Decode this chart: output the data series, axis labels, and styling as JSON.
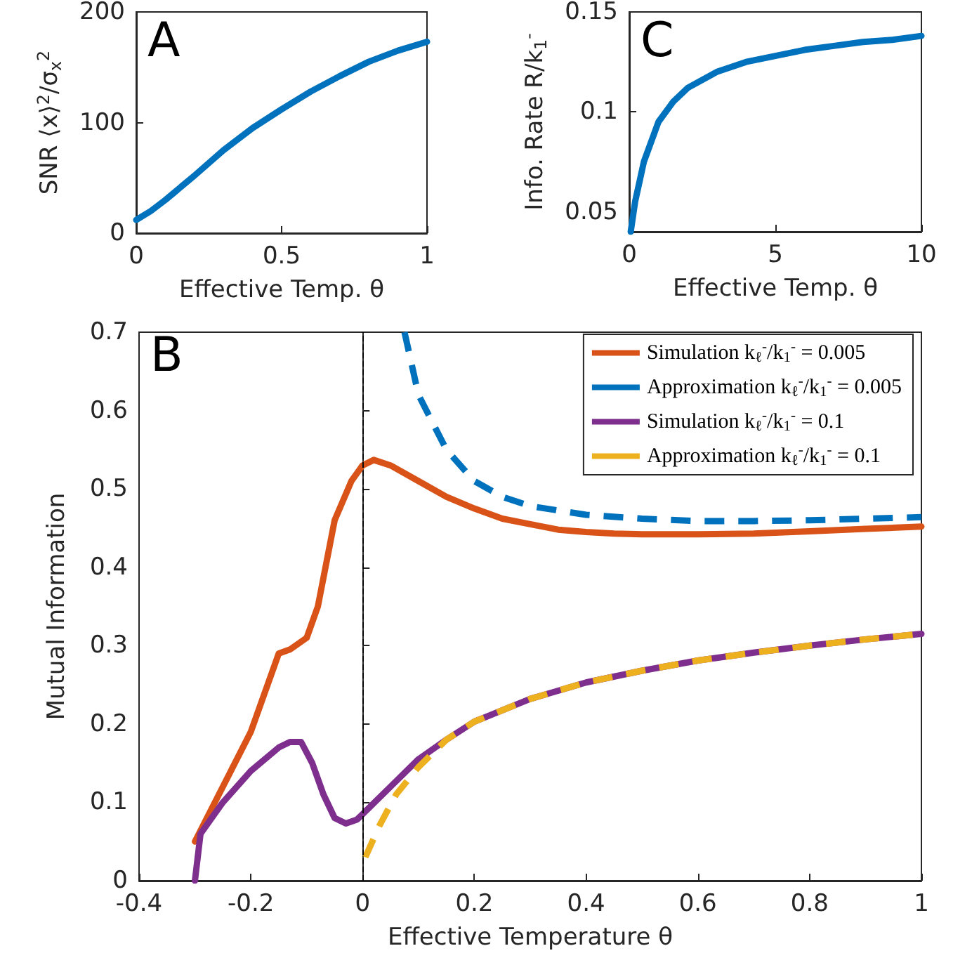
{
  "chart_data": [
    {
      "type": "line",
      "annotations": [
        "A"
      ],
      "xlabel": "Effective Temp. θ",
      "ylabel": "SNR ⟨x⟩$^{2}$/σ$_{x}$$^{2}$",
      "xlim": [
        0,
        1
      ],
      "xticks": [
        0,
        0.5,
        1
      ],
      "ylim": [
        0,
        200
      ],
      "yticks": [
        0,
        100,
        200
      ],
      "grid": false,
      "marker": "none",
      "series": [
        {
          "color": "#0072bd",
          "x": [
            0,
            0.05,
            0.1,
            0.2,
            0.3,
            0.4,
            0.5,
            0.6,
            0.7,
            0.8,
            0.9,
            1
          ],
          "values": [
            12,
            20,
            30,
            52,
            75,
            95,
            112,
            128,
            142,
            155,
            165,
            173
          ]
        }
      ]
    },
    {
      "type": "line",
      "annotations": [
        "C"
      ],
      "xlabel": "Effective Temp. θ",
      "ylabel": "Info. Rate R/k$_{1}$$^{-}$",
      "xlim": [
        0,
        10
      ],
      "xticks": [
        0,
        5,
        10
      ],
      "ylim": [
        0.04,
        0.15
      ],
      "yticks": [
        0.05,
        0.1,
        0.15
      ],
      "grid": false,
      "marker": "none",
      "series": [
        {
          "color": "#0072bd",
          "x": [
            0.05,
            0.2,
            0.5,
            1,
            1.5,
            2,
            3,
            4,
            5,
            6,
            7,
            8,
            9,
            10
          ],
          "values": [
            0.04,
            0.055,
            0.075,
            0.095,
            0.105,
            0.112,
            0.12,
            0.125,
            0.128,
            0.131,
            0.133,
            0.135,
            0.136,
            0.138
          ]
        }
      ]
    },
    {
      "type": "line",
      "annotations": [
        "B"
      ],
      "xlabel": "Effective Temperature θ",
      "ylabel": "Mutual Information",
      "xlim": [
        -0.4,
        1
      ],
      "xticks": [
        -0.4,
        -0.2,
        0,
        0.2,
        0.4,
        0.6,
        0.8,
        1
      ],
      "ylim": [
        0,
        0.7
      ],
      "yticks": [
        0,
        0.1,
        0.2,
        0.3,
        0.4,
        0.5,
        0.6,
        0.7
      ],
      "grid": false,
      "marker": "none",
      "legend": "top right",
      "ref_lines": [
        {
          "axis": "x",
          "value": 0,
          "color": "#000000",
          "line_style": "dashed"
        }
      ],
      "series": [
        {
          "name": "Simulation k$_{ℓ}$$^{-}$/k$_{1}$$^{-}$ = 0.005",
          "color": "#d95319",
          "line_style": "solid",
          "x": [
            -0.3,
            -0.2,
            -0.15,
            -0.13,
            -0.1,
            -0.08,
            -0.05,
            -0.02,
            0,
            0.02,
            0.05,
            0.1,
            0.15,
            0.2,
            0.25,
            0.3,
            0.35,
            0.4,
            0.45,
            0.5,
            0.6,
            0.7,
            0.8,
            0.9,
            1
          ],
          "values": [
            0.05,
            0.19,
            0.29,
            0.295,
            0.31,
            0.35,
            0.46,
            0.51,
            0.53,
            0.537,
            0.53,
            0.51,
            0.49,
            0.475,
            0.462,
            0.455,
            0.448,
            0.445,
            0.443,
            0.442,
            0.442,
            0.443,
            0.446,
            0.449,
            0.452
          ]
        },
        {
          "name": "Approximation k$_{ℓ}$$^{-}$/k$_{1}$$^{-}$ = 0.005",
          "color": "#0072bd",
          "line_style": "dashed",
          "x": [
            0.075,
            0.1,
            0.15,
            0.2,
            0.25,
            0.3,
            0.4,
            0.5,
            0.6,
            0.7,
            0.8,
            0.9,
            1
          ],
          "values": [
            0.7,
            0.62,
            0.55,
            0.51,
            0.49,
            0.478,
            0.467,
            0.462,
            0.459,
            0.459,
            0.46,
            0.462,
            0.464
          ]
        },
        {
          "name": "Simulation k$_{ℓ}$$^{-}$/k$_{1}$$^{-}$ = 0.1",
          "color": "#7e2f8e",
          "line_style": "solid",
          "x": [
            -0.3,
            -0.29,
            -0.25,
            -0.2,
            -0.15,
            -0.13,
            -0.11,
            -0.09,
            -0.07,
            -0.05,
            -0.03,
            -0.01,
            0,
            0.05,
            0.1,
            0.15,
            0.2,
            0.3,
            0.4,
            0.5,
            0.6,
            0.7,
            0.8,
            0.9,
            1
          ],
          "values": [
            0,
            0.06,
            0.1,
            0.14,
            0.17,
            0.177,
            0.177,
            0.15,
            0.11,
            0.08,
            0.073,
            0.078,
            0.085,
            0.12,
            0.155,
            0.18,
            0.203,
            0.232,
            0.253,
            0.268,
            0.281,
            0.291,
            0.3,
            0.308,
            0.315
          ]
        },
        {
          "name": "Approximation k$_{ℓ}$$^{-}$/k$_{1}$$^{-}$ = 0.1",
          "color": "#edb120",
          "line_style": "dashed",
          "x": [
            0.005,
            0.03,
            0.06,
            0.1,
            0.15,
            0.2,
            0.3,
            0.4,
            0.5,
            0.6,
            0.7,
            0.8,
            0.9,
            1
          ],
          "values": [
            0.03,
            0.07,
            0.11,
            0.145,
            0.18,
            0.203,
            0.232,
            0.253,
            0.268,
            0.281,
            0.291,
            0.3,
            0.308,
            0.315
          ]
        }
      ]
    }
  ]
}
